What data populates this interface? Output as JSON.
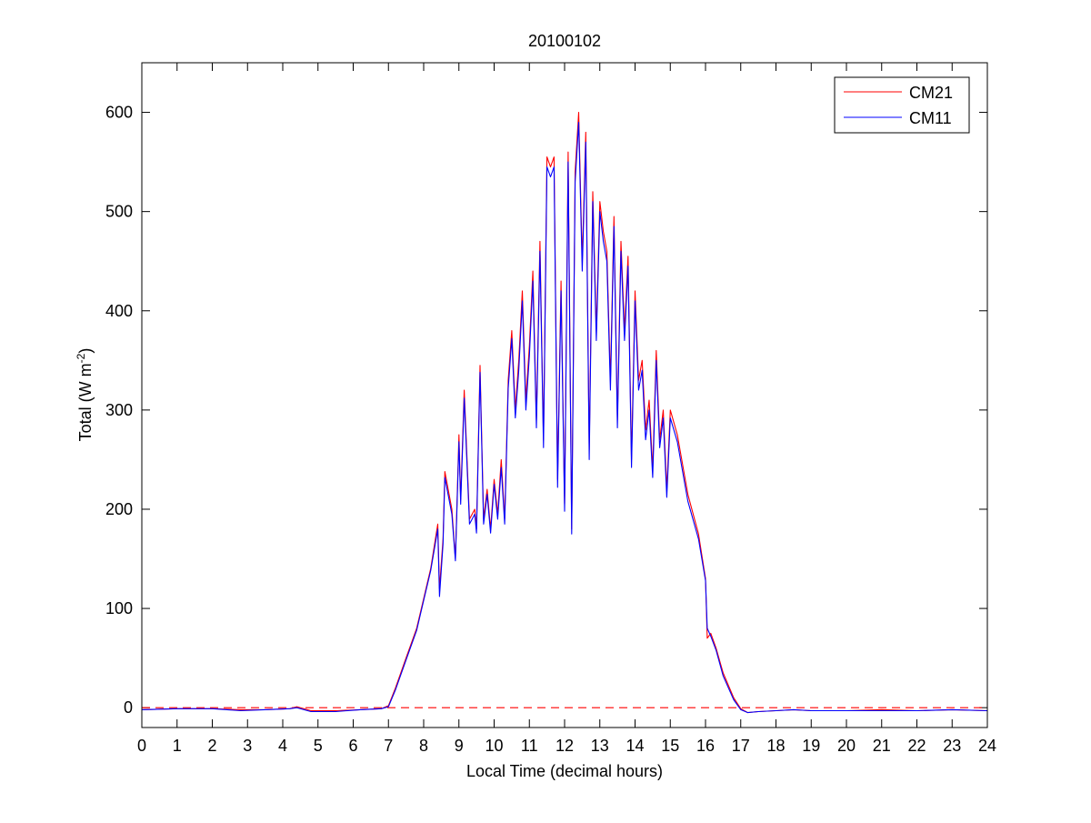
{
  "chart_data": {
    "type": "line",
    "title": "20100102",
    "xlabel": "Local Time (decimal hours)",
    "ylabel": {
      "main": "Total (W m",
      "exponent": "-2",
      "suffix": ")"
    },
    "xlim": [
      0,
      24
    ],
    "ylim": [
      -20,
      650
    ],
    "x_ticks": [
      0,
      1,
      2,
      3,
      4,
      5,
      6,
      7,
      8,
      9,
      10,
      11,
      12,
      13,
      14,
      15,
      16,
      17,
      18,
      19,
      20,
      21,
      22,
      23,
      24
    ],
    "y_ticks": [
      0,
      100,
      200,
      300,
      400,
      500,
      600
    ],
    "grid": false,
    "legend": {
      "position": "top-right"
    },
    "reference_line": {
      "y": 0,
      "style": "dashed",
      "color": "#ff0000"
    },
    "colors": {
      "CM21": "#ff0000",
      "CM11": "#0000ff"
    },
    "series": [
      {
        "name": "CM21",
        "x": [
          0,
          1,
          2,
          2.8,
          3.5,
          4.2,
          4.4,
          4.8,
          5.5,
          6.2,
          6.8,
          7.0,
          7.2,
          7.5,
          7.8,
          8.0,
          8.2,
          8.4,
          8.45,
          8.55,
          8.6,
          8.8,
          8.9,
          9.0,
          9.05,
          9.15,
          9.3,
          9.45,
          9.5,
          9.6,
          9.7,
          9.8,
          9.9,
          10.0,
          10.1,
          10.2,
          10.3,
          10.4,
          10.5,
          10.6,
          10.7,
          10.8,
          10.9,
          11.0,
          11.1,
          11.2,
          11.3,
          11.4,
          11.5,
          11.6,
          11.7,
          11.8,
          11.9,
          12.0,
          12.1,
          12.2,
          12.3,
          12.4,
          12.5,
          12.6,
          12.7,
          12.8,
          12.9,
          13.0,
          13.1,
          13.2,
          13.3,
          13.4,
          13.5,
          13.6,
          13.7,
          13.8,
          13.9,
          14.0,
          14.1,
          14.2,
          14.3,
          14.4,
          14.5,
          14.6,
          14.7,
          14.8,
          14.9,
          15.0,
          15.2,
          15.5,
          15.8,
          16.0,
          16.05,
          16.15,
          16.3,
          16.5,
          16.8,
          17.0,
          17.2,
          17.5,
          18.0,
          18.5,
          19,
          20,
          21,
          22,
          23,
          24
        ],
        "y": [
          -2,
          -1,
          -1,
          -2,
          -2,
          -1,
          1,
          -3,
          -3,
          -2,
          -1,
          2,
          20,
          50,
          80,
          110,
          140,
          185,
          120,
          170,
          238,
          200,
          150,
          275,
          210,
          320,
          190,
          200,
          180,
          345,
          190,
          220,
          180,
          230,
          195,
          250,
          190,
          330,
          380,
          300,
          350,
          420,
          310,
          365,
          440,
          290,
          470,
          270,
          555,
          545,
          555,
          230,
          430,
          205,
          560,
          180,
          540,
          600,
          450,
          580,
          260,
          520,
          380,
          510,
          480,
          460,
          330,
          495,
          290,
          470,
          380,
          455,
          250,
          420,
          330,
          350,
          280,
          310,
          240,
          360,
          270,
          300,
          220,
          300,
          275,
          215,
          175,
          130,
          70,
          75,
          60,
          35,
          10,
          -1,
          -5,
          -4,
          -3,
          -2,
          -3,
          -3,
          -2,
          -3,
          -2,
          -3
        ]
      },
      {
        "name": "CM11",
        "x": [
          0,
          1,
          2,
          2.8,
          3.5,
          4.2,
          4.4,
          4.8,
          5.5,
          6.2,
          6.8,
          7.0,
          7.2,
          7.5,
          7.8,
          8.0,
          8.2,
          8.4,
          8.45,
          8.55,
          8.6,
          8.8,
          8.9,
          9.0,
          9.05,
          9.15,
          9.3,
          9.45,
          9.5,
          9.6,
          9.7,
          9.8,
          9.9,
          10.0,
          10.1,
          10.2,
          10.3,
          10.4,
          10.5,
          10.6,
          10.7,
          10.8,
          10.9,
          11.0,
          11.1,
          11.2,
          11.3,
          11.4,
          11.5,
          11.6,
          11.7,
          11.8,
          11.9,
          12.0,
          12.1,
          12.2,
          12.3,
          12.4,
          12.5,
          12.6,
          12.7,
          12.8,
          12.9,
          13.0,
          13.1,
          13.2,
          13.3,
          13.4,
          13.5,
          13.6,
          13.7,
          13.8,
          13.9,
          14.0,
          14.1,
          14.2,
          14.3,
          14.4,
          14.5,
          14.6,
          14.7,
          14.8,
          14.9,
          15.0,
          15.2,
          15.5,
          15.8,
          16.0,
          16.05,
          16.15,
          16.3,
          16.5,
          16.8,
          17.0,
          17.2,
          17.5,
          18.0,
          18.5,
          19,
          20,
          21,
          22,
          23,
          24
        ],
        "y": [
          -2,
          -1,
          -1,
          -3,
          -2,
          -1,
          0,
          -4,
          -4,
          -2,
          -1,
          1,
          18,
          48,
          78,
          108,
          138,
          180,
          112,
          165,
          232,
          195,
          148,
          268,
          205,
          312,
          185,
          195,
          176,
          338,
          185,
          215,
          176,
          225,
          190,
          242,
          185,
          322,
          372,
          292,
          340,
          410,
          300,
          355,
          430,
          282,
          460,
          262,
          545,
          535,
          545,
          222,
          420,
          198,
          550,
          175,
          530,
          590,
          440,
          570,
          250,
          510,
          370,
          500,
          470,
          450,
          320,
          485,
          282,
          460,
          370,
          445,
          242,
          410,
          320,
          340,
          270,
          300,
          232,
          350,
          262,
          292,
          212,
          292,
          268,
          208,
          170,
          128,
          80,
          72,
          58,
          32,
          8,
          -2,
          -5,
          -4,
          -3,
          -2,
          -3,
          -3,
          -3,
          -3,
          -2,
          -3
        ]
      }
    ]
  }
}
